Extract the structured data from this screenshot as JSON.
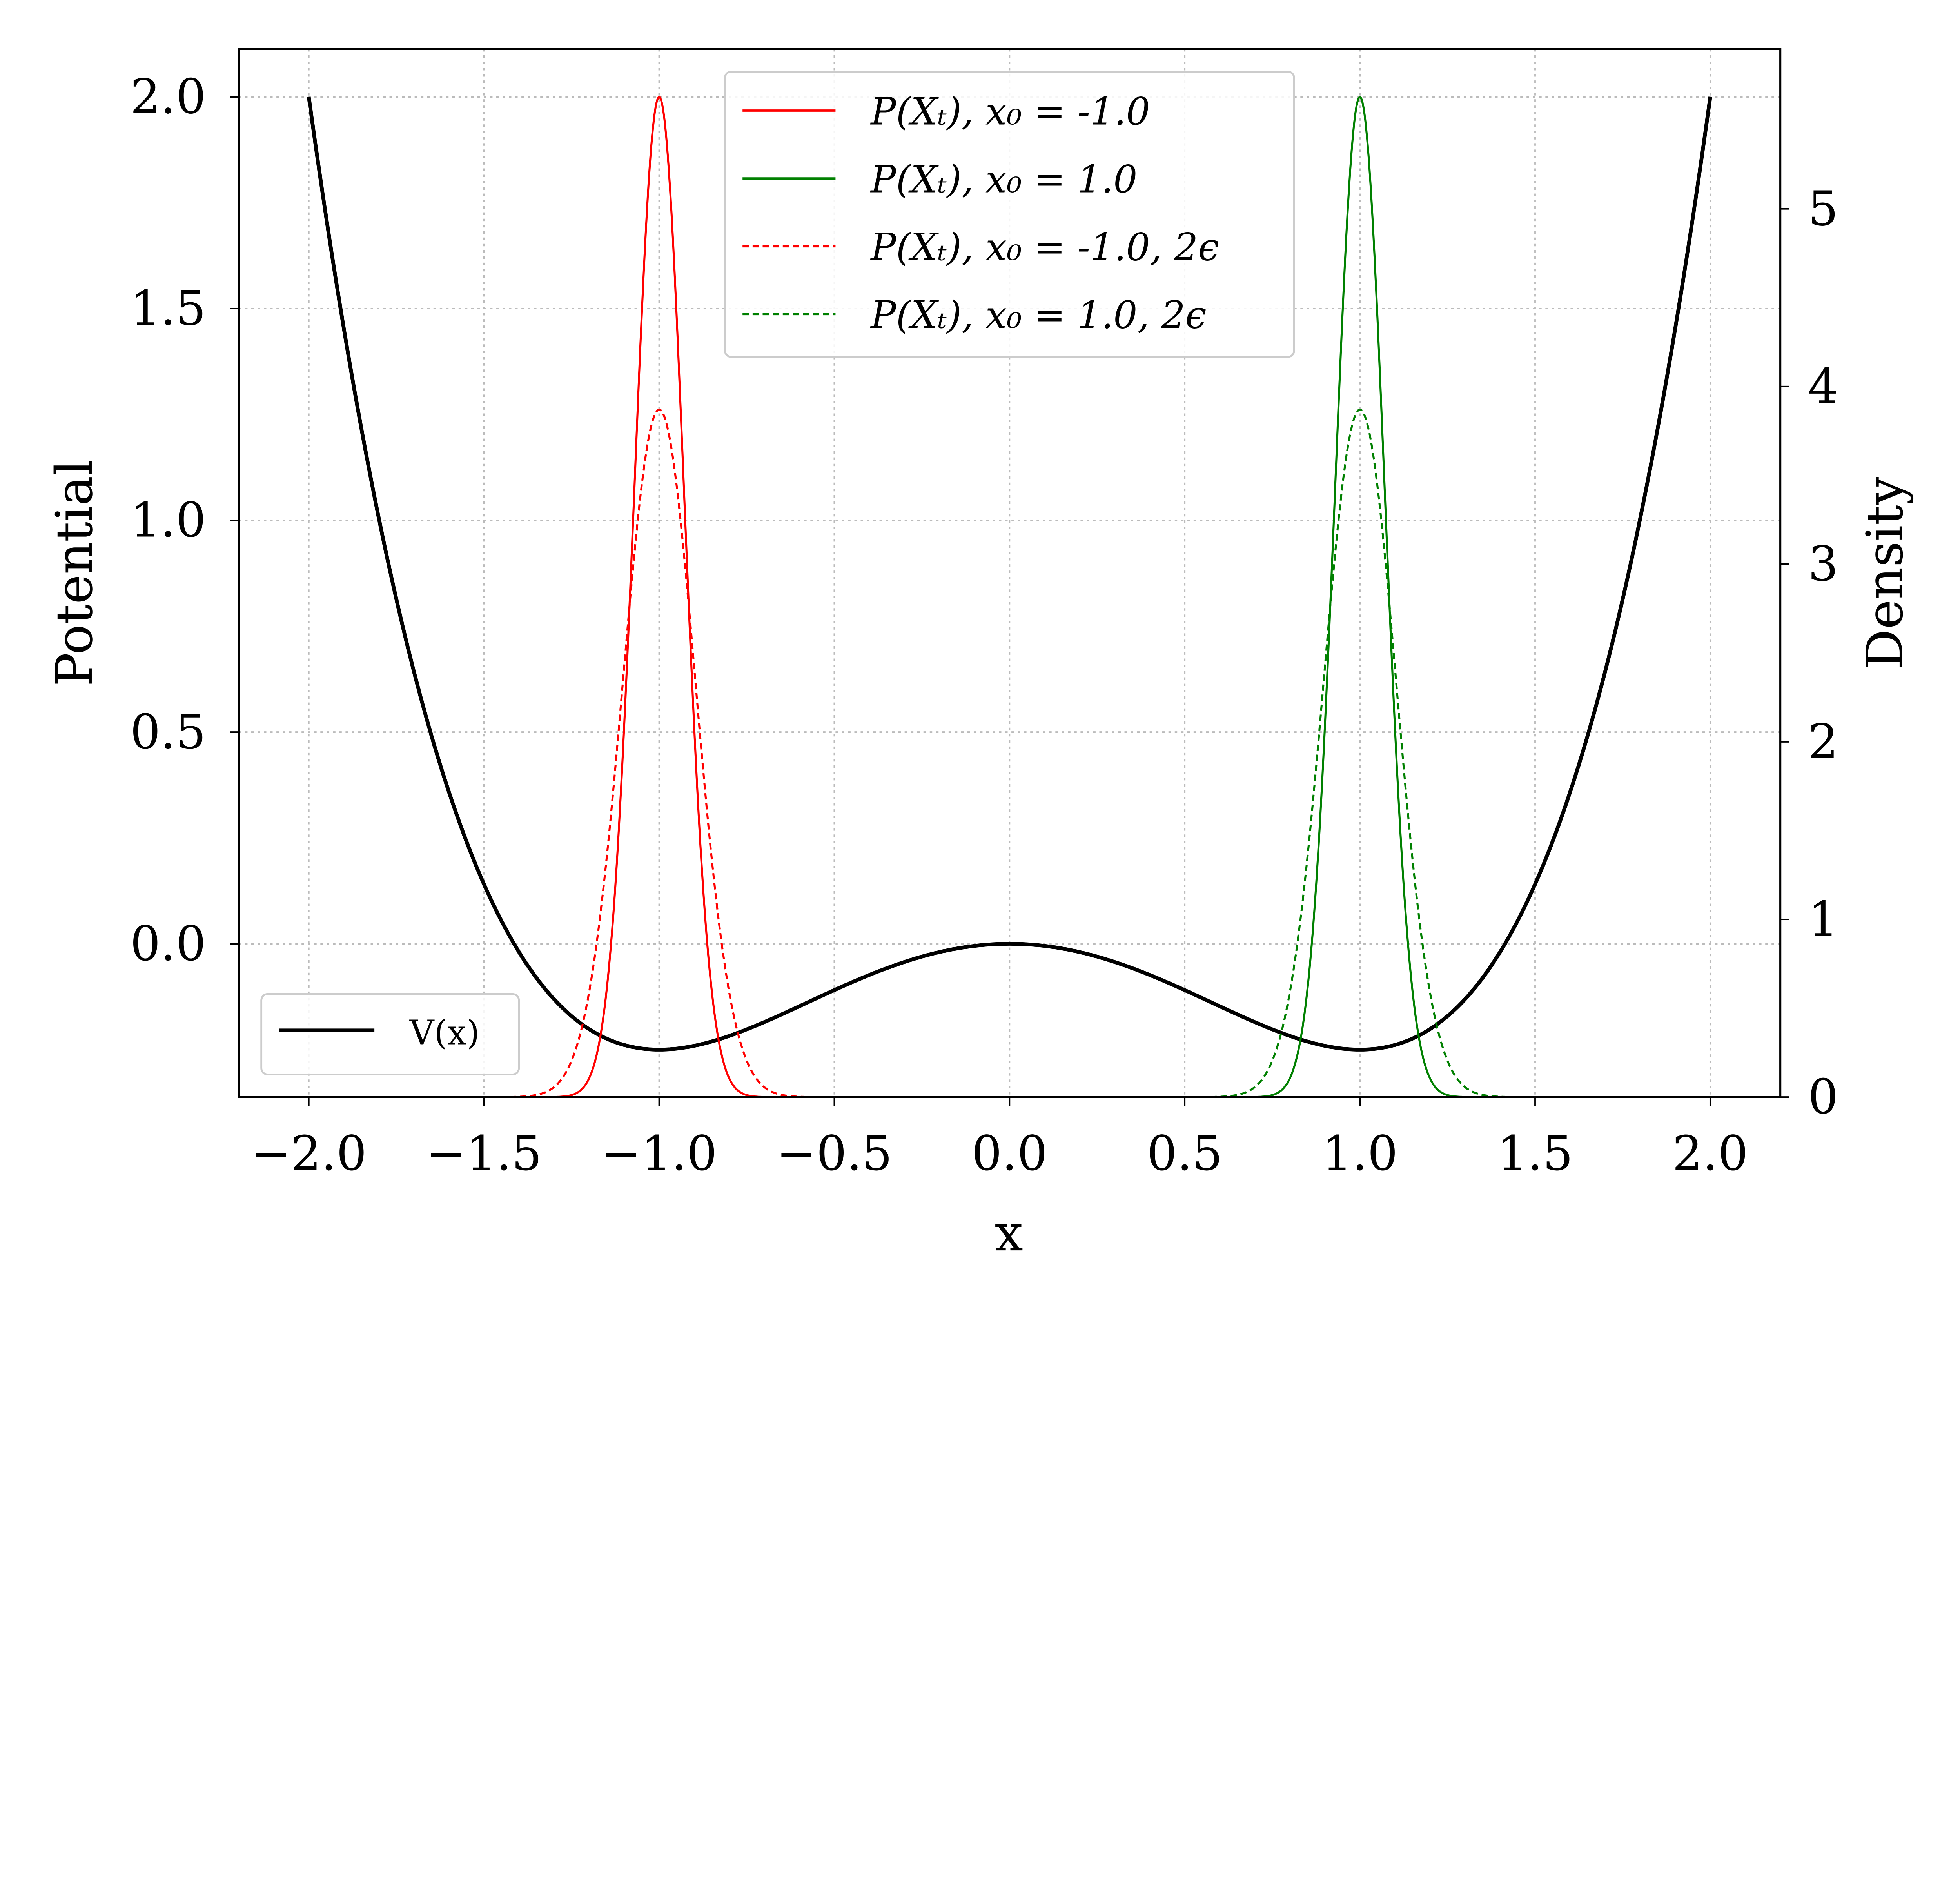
{
  "chart_data": {
    "type": "line",
    "xlabel": "x",
    "ylabel_left": "Potential",
    "ylabel_right": "Density",
    "xlim": [
      -2.2,
      2.2
    ],
    "ylim_left": [
      -0.362,
      2.113
    ],
    "ylim_right": [
      0,
      5.9
    ],
    "grid": true,
    "x_ticks": [
      "−2.0",
      "−1.5",
      "−1.0",
      "−0.5",
      "0.0",
      "0.5",
      "1.0",
      "1.5",
      "2.0"
    ],
    "x_tick_values": [
      -2,
      -1.5,
      -1,
      -0.5,
      0,
      0.5,
      1,
      1.5,
      2
    ],
    "y_left_ticks": [
      "0.0",
      "0.5",
      "1.0",
      "1.5",
      "2.0"
    ],
    "y_left_tick_values": [
      0,
      0.5,
      1,
      1.5,
      2
    ],
    "y_right_ticks": [
      "0",
      "1",
      "2",
      "3",
      "4",
      "5"
    ],
    "y_right_tick_values": [
      0,
      1,
      2,
      3,
      4,
      5
    ],
    "potential": {
      "name": "V(x)",
      "formula": "x^4/4 - x^2/2",
      "x_range": [
        -2,
        2
      ],
      "color": "#000000",
      "legend_placement": "lower-left"
    },
    "density_legend_placement": "upper-center",
    "series": [
      {
        "name": "P(Xₜ), x₀ = -1.0",
        "mean": -1.0,
        "std": 0.0709,
        "peak": 5.63,
        "color": "#ff0000",
        "style": "solid"
      },
      {
        "name": "P(Xₜ), x₀ = 1.0",
        "mean": 1.0,
        "std": 0.0709,
        "peak": 5.63,
        "color": "#008000",
        "style": "solid"
      },
      {
        "name": "P(Xₜ), x₀ = -1.0, 2ϵ",
        "mean": -1.0,
        "std": 0.1031,
        "peak": 3.87,
        "color": "#ff0000",
        "style": "dashed"
      },
      {
        "name": "P(Xₜ), x₀ = 1.0, 2ϵ",
        "mean": 1.0,
        "std": 0.1031,
        "peak": 3.87,
        "color": "#008000",
        "style": "dashed"
      }
    ]
  }
}
